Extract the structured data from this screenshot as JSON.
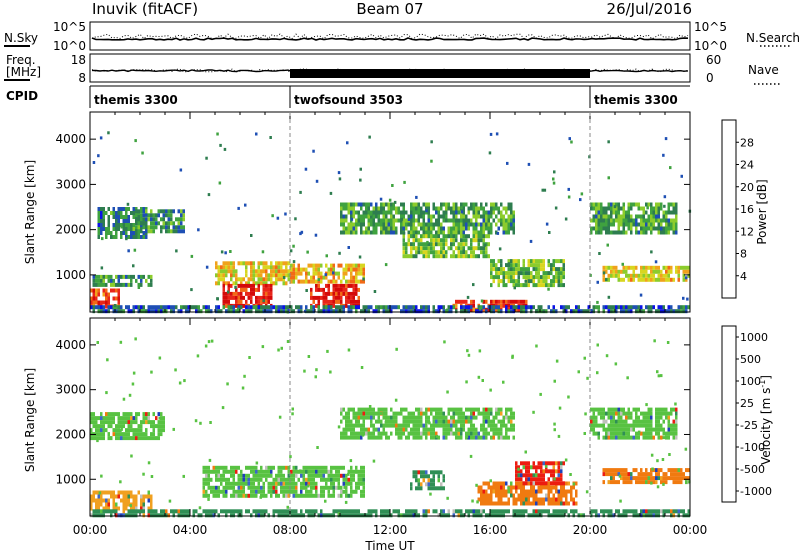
{
  "header": {
    "station": "Inuvik (fitACF)",
    "beam": "Beam 07",
    "date": "26/Jul/2016"
  },
  "top_panel": {
    "left_label": "N.Sky",
    "right_label": "N.Search",
    "left_ticks": [
      "10^5",
      "10^0"
    ],
    "right_ticks": [
      "10^5",
      "10^0"
    ]
  },
  "freq_panel": {
    "left_label_1": "Freq.",
    "left_label_2": "[MHz]",
    "right_label": "Nave",
    "left_ticks": [
      "18",
      "8"
    ],
    "right_ticks": [
      "60",
      "0"
    ]
  },
  "cpid_panel": {
    "label": "CPID",
    "segments": [
      {
        "name": "themis 3300",
        "start_h": 0,
        "end_h": 8
      },
      {
        "name": "twofsound 3503",
        "start_h": 8,
        "end_h": 20
      },
      {
        "name": "themis 3300",
        "start_h": 20,
        "end_h": 24
      }
    ]
  },
  "chart_data": [
    {
      "type": "heatmap",
      "ylabel": "Slant Range [km]",
      "ylim": [
        180,
        4600
      ],
      "xlim": [
        0,
        24
      ],
      "yticks": [
        1000,
        2000,
        3000,
        4000
      ],
      "colorbar": {
        "label": "Power [dB]",
        "ticks": [
          4,
          8,
          12,
          16,
          20,
          24,
          28
        ],
        "range": [
          0,
          32
        ],
        "colors": [
          "#0a12e6",
          "#1e4fb4",
          "#2e7d4f",
          "#3fa23f",
          "#8ccc2c",
          "#d8d620",
          "#f0a21c",
          "#f26a16",
          "#e8261a",
          "#d40a0a"
        ]
      },
      "echo_regions": [
        {
          "x": [
            0.0,
            1.2
          ],
          "y": [
            300,
            700
          ],
          "v": 26
        },
        {
          "x": [
            0.0,
            2.5
          ],
          "y": [
            800,
            1000
          ],
          "v": 10
        },
        {
          "x": [
            0.3,
            2.3
          ],
          "y": [
            1850,
            2500
          ],
          "v": 8
        },
        {
          "x": [
            1.8,
            3.8
          ],
          "y": [
            1950,
            2450
          ],
          "v": 9
        },
        {
          "x": [
            5.0,
            8.0
          ],
          "y": [
            800,
            1300
          ],
          "v": 18
        },
        {
          "x": [
            5.3,
            7.3
          ],
          "y": [
            300,
            800
          ],
          "v": 28
        },
        {
          "x": [
            8.0,
            11.0
          ],
          "y": [
            850,
            1250
          ],
          "v": 20
        },
        {
          "x": [
            8.8,
            10.8
          ],
          "y": [
            350,
            800
          ],
          "v": 29
        },
        {
          "x": [
            10.0,
            17.0
          ],
          "y": [
            1900,
            2600
          ],
          "v": 11
        },
        {
          "x": [
            12.5,
            16.0
          ],
          "y": [
            1400,
            1900
          ],
          "v": 13
        },
        {
          "x": [
            16.0,
            19.0
          ],
          "y": [
            750,
            1350
          ],
          "v": 13
        },
        {
          "x": [
            14.5,
            17.5
          ],
          "y": [
            200,
            450
          ],
          "v": 27
        },
        {
          "x": [
            20.0,
            23.5
          ],
          "y": [
            1900,
            2600
          ],
          "v": 11
        },
        {
          "x": [
            20.5,
            24.0
          ],
          "y": [
            900,
            1200
          ],
          "v": 18
        },
        {
          "x": [
            0.0,
            24.0
          ],
          "y": [
            200,
            330
          ],
          "v": 6
        }
      ]
    },
    {
      "type": "heatmap",
      "ylabel": "Slant Range [km]",
      "ylim": [
        180,
        4600
      ],
      "xlim": [
        0,
        24
      ],
      "yticks": [
        1000,
        2000,
        3000,
        4000
      ],
      "colorbar": {
        "label": "Velocity [m s^-1]",
        "ticks": [
          "1000",
          "500",
          "100",
          "25",
          "-25",
          "-100",
          "-500",
          "-1000"
        ],
        "colors": [
          "#1f3fb8",
          "#3c66c8",
          "#2f8f55",
          "#58c242",
          "#c0c0bc",
          "#f0a020",
          "#f07a10",
          "#ec1c10"
        ]
      },
      "echo_regions": [
        {
          "x": [
            0.0,
            3.0
          ],
          "y": [
            1900,
            2500
          ],
          "v": "25"
        },
        {
          "x": [
            0.0,
            2.5
          ],
          "y": [
            350,
            750
          ],
          "v": "-100"
        },
        {
          "x": [
            4.5,
            11.0
          ],
          "y": [
            600,
            1300
          ],
          "v": "25"
        },
        {
          "x": [
            10.0,
            17.0
          ],
          "y": [
            1900,
            2600
          ],
          "v": "25"
        },
        {
          "x": [
            12.8,
            14.2
          ],
          "y": [
            800,
            1200
          ],
          "v": "100"
        },
        {
          "x": [
            15.5,
            19.5
          ],
          "y": [
            450,
            950
          ],
          "v": "-500"
        },
        {
          "x": [
            17.0,
            19.0
          ],
          "y": [
            900,
            1400
          ],
          "v": "-1000"
        },
        {
          "x": [
            20.5,
            24.0
          ],
          "y": [
            900,
            1250
          ],
          "v": "-500"
        },
        {
          "x": [
            20.0,
            23.5
          ],
          "y": [
            1900,
            2600
          ],
          "v": "25"
        },
        {
          "x": [
            0.0,
            24.0
          ],
          "y": [
            200,
            330
          ],
          "v": "100"
        }
      ]
    }
  ],
  "x_axis": {
    "ticks": [
      "00:00",
      "04:00",
      "08:00",
      "12:00",
      "16:00",
      "20:00",
      "00:00"
    ],
    "label": "Time UT"
  }
}
